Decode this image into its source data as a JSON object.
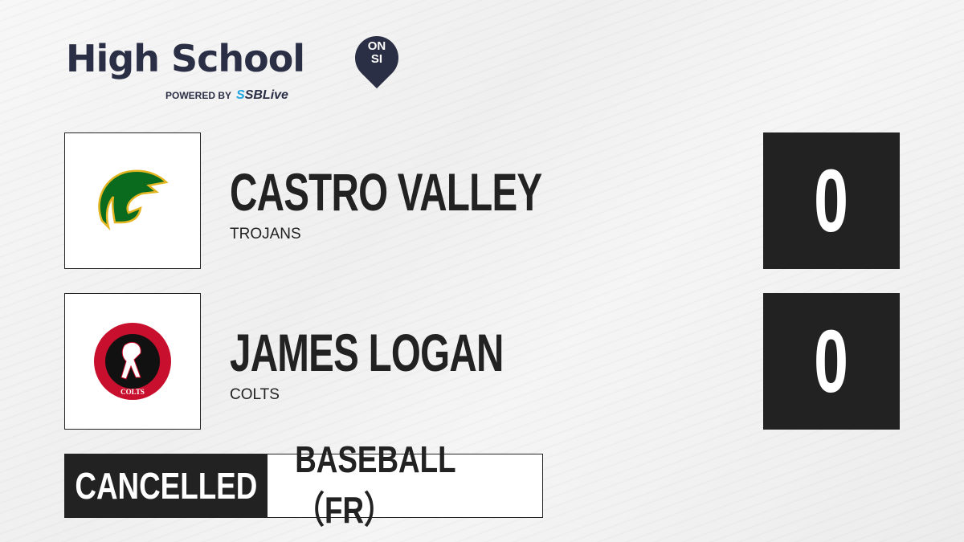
{
  "brand": {
    "title": "High School",
    "badge_top": "ON",
    "badge_bottom": "SI",
    "powered_by": "POWERED BY",
    "partner_prefix": "S",
    "partner": "SBLive"
  },
  "teams": [
    {
      "name": "CASTRO VALLEY",
      "mascot": "TROJANS",
      "score": "0",
      "logo_colors": [
        "#0a6b1f",
        "#e3b521"
      ]
    },
    {
      "name": "JAMES LOGAN",
      "mascot": "COLTS",
      "score": "0",
      "logo_text": "JAMES LOGAN HIGH SCHOOL",
      "logo_bottom": "COLTS",
      "logo_colors": [
        "#c8102e",
        "#111111"
      ]
    }
  ],
  "game": {
    "status": "CANCELLED",
    "sport": "BASEBALL（FR）"
  }
}
